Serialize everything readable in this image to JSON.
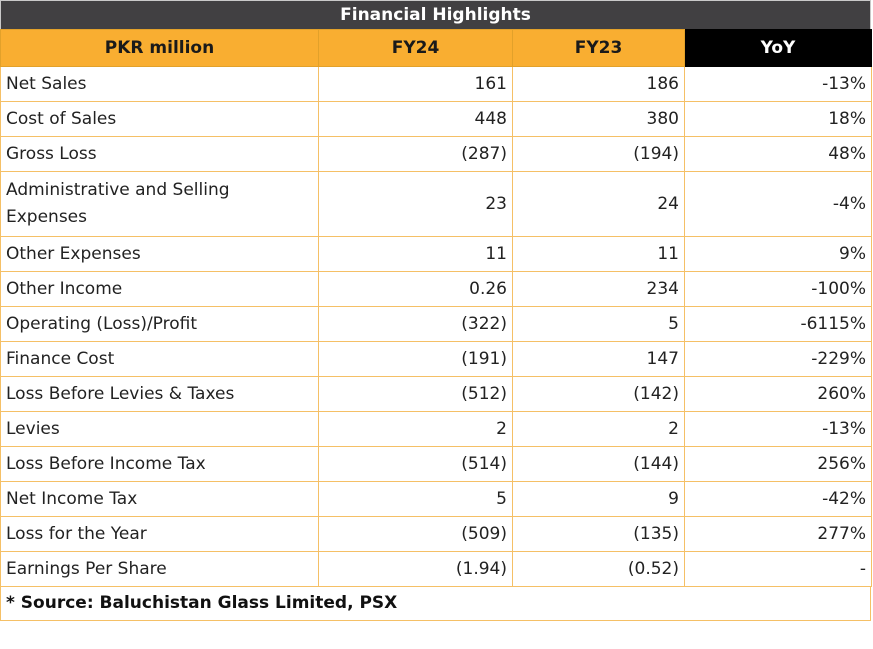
{
  "title": "Financial Highlights",
  "headers": [
    "PKR million",
    "FY24",
    "FY23",
    "YoY"
  ],
  "rows": [
    {
      "label": "Net Sales",
      "fy24": "161",
      "fy23": "186",
      "yoy": "-13%"
    },
    {
      "label": "Cost of Sales",
      "fy24": "448",
      "fy23": "380",
      "yoy": "18%"
    },
    {
      "label": "Gross Loss",
      "fy24": "(287)",
      "fy23": "(194)",
      "yoy": "48%"
    },
    {
      "label": "Administrative and Selling Expenses",
      "fy24": "23",
      "fy23": "24",
      "yoy": "-4%"
    },
    {
      "label": "Other Expenses",
      "fy24": "11",
      "fy23": "11",
      "yoy": "9%"
    },
    {
      "label": "Other Income",
      "fy24": "0.26",
      "fy23": "234",
      "yoy": "-100%"
    },
    {
      "label": "Operating (Loss)/Profit",
      "fy24": "(322)",
      "fy23": "5",
      "yoy": "-6115%"
    },
    {
      "label": "Finance Cost",
      "fy24": "(191)",
      "fy23": "147",
      "yoy": "-229%"
    },
    {
      "label": "Loss Before Levies & Taxes",
      "fy24": "(512)",
      "fy23": "(142)",
      "yoy": "260%"
    },
    {
      "label": "Levies",
      "fy24": "2",
      "fy23": "2",
      "yoy": "-13%"
    },
    {
      "label": "Loss Before Income Tax",
      "fy24": "(514)",
      "fy23": "(144)",
      "yoy": "256%"
    },
    {
      "label": "Net Income Tax",
      "fy24": "5",
      "fy23": "9",
      "yoy": "-42%"
    },
    {
      "label": "Loss for the Year",
      "fy24": "(509)",
      "fy23": "(135)",
      "yoy": "277%"
    },
    {
      "label": "Earnings Per Share",
      "fy24": "(1.94)",
      "fy23": "(0.52)",
      "yoy": "-"
    }
  ],
  "source": "* Source: Baluchistan Glass Limited, PSX",
  "colors": {
    "title_bg": "#414042",
    "header_bg": "#f9ae31",
    "yoy_header_bg": "#000000",
    "border": "#f5c066"
  }
}
